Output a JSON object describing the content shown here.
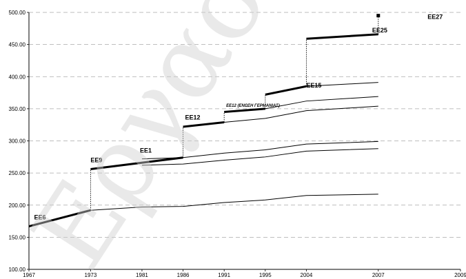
{
  "chart_data": {
    "type": "line",
    "title": "",
    "xlabel": "",
    "ylabel": "",
    "ylim": [
      100,
      500
    ],
    "xlim": [
      1967,
      2009
    ],
    "y_ticks": [
      "100.00",
      "150.00",
      "200.00",
      "250.00",
      "300.00",
      "350.00",
      "400.00",
      "450.00",
      "500.00"
    ],
    "x_ticks": [
      "1967",
      "1973",
      "1981",
      "1986",
      "1991",
      "1995",
      "2004",
      "2007",
      "2009"
    ],
    "x_tick_positions": [
      1967,
      1973,
      1978,
      1982,
      1986,
      1990,
      1994,
      2001,
      2009
    ],
    "grid": "horizontal dashed",
    "watermark": "Εργαστήριο",
    "annotation": "ΕΕ12 (ΕΝΩΣΗ ΓΕΡΜΑΝΙΑΣ)",
    "enlargement_labels": [
      {
        "label": "ΕΕ6",
        "x": 1967.5,
        "y": 178
      },
      {
        "label": "ΕΕ9",
        "x": 1973.0,
        "y": 267
      },
      {
        "label": "ΕΕ1",
        "x": 1977.8,
        "y": 282
      },
      {
        "label": "ΕΕ12",
        "x": 1982.2,
        "y": 333
      },
      {
        "label": "ΕΕ15",
        "x": 1994.0,
        "y": 383
      },
      {
        "label": "ΕΕ25",
        "x": 2000.4,
        "y": 469
      },
      {
        "label": "ΕΕ27",
        "x": 2005.8,
        "y": 490
      }
    ],
    "thick_line": [
      {
        "x": [
          1967,
          1973
        ],
        "y": [
          167,
          192
        ]
      },
      {
        "x": [
          1973,
          1982
        ],
        "y": [
          256,
          274
        ]
      },
      {
        "x": [
          1982,
          1986
        ],
        "y": [
          322,
          329
        ]
      },
      {
        "x": [
          1986,
          1990
        ],
        "y": [
          345,
          350
        ]
      },
      {
        "x": [
          1990,
          1994
        ],
        "y": [
          372,
          385
        ]
      },
      {
        "x": [
          1994,
          2001
        ],
        "y": [
          459,
          466
        ]
      }
    ],
    "ee27_point": {
      "x": 2001,
      "y": 495
    },
    "step_connectors": [
      {
        "x": 1973,
        "y": [
          192,
          256
        ]
      },
      {
        "x": 1982,
        "y": [
          274,
          322
        ]
      },
      {
        "x": 1986,
        "y": [
          329,
          345
        ]
      },
      {
        "x": 1990,
        "y": [
          350,
          372
        ]
      },
      {
        "x": 1994,
        "y": [
          385,
          459
        ]
      },
      {
        "x": 2001,
        "y": [
          466,
          495
        ]
      }
    ],
    "series": [
      {
        "x": [
          1973,
          1978,
          1982,
          1986,
          1990,
          1994,
          2001
        ],
        "y": [
          192,
          197,
          198,
          204,
          208,
          215,
          217
        ]
      },
      {
        "x": [
          1978,
          1982,
          1986,
          1990,
          1994,
          2001
        ],
        "y": [
          262,
          264,
          270,
          275,
          284,
          288
        ]
      },
      {
        "x": [
          1978,
          1982,
          1986,
          1990,
          1994,
          2001
        ],
        "y": [
          272,
          274,
          281,
          286,
          295,
          299
        ]
      },
      {
        "x": [
          1986,
          1990,
          1994,
          2001
        ],
        "y": [
          329,
          335,
          347,
          354
        ]
      },
      {
        "x": [
          1990,
          1994,
          2001
        ],
        "y": [
          350,
          362,
          369
        ]
      },
      {
        "x": [
          1994,
          2001
        ],
        "y": [
          385,
          391
        ]
      }
    ]
  }
}
